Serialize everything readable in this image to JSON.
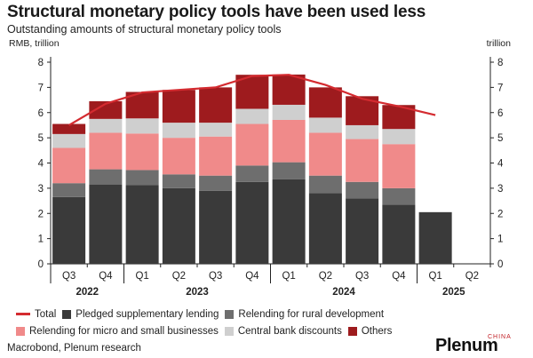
{
  "title": "Structural monetary policy tools have been used less",
  "subtitle": "Outstanding amounts of structural monetary policy tools",
  "source": "Macrobond, Plenum research",
  "logo": {
    "text": "Plenum",
    "superscript": "CHINA"
  },
  "colors": {
    "Total": "#d42b30",
    "Pledged supplementary lending": "#3a3a3a",
    "Relending for rural development": "#6e6e6e",
    "Relending for micro and small businesses": "#f08a8a",
    "Central bank discounts": "#cfcfcf",
    "Others": "#9e1b1e"
  },
  "chart_data": {
    "type": "bar",
    "stacked": true,
    "ylabel_left": "RMB, trillion",
    "ylabel_right": "trillion",
    "ylim": [
      0,
      8
    ],
    "yticks": [
      0,
      1,
      2,
      3,
      4,
      5,
      6,
      7,
      8
    ],
    "grid": false,
    "legend_position": "bottom",
    "categories": [
      "Q3",
      "Q4",
      "Q1",
      "Q2",
      "Q3",
      "Q4",
      "Q1",
      "Q2",
      "Q3",
      "Q4",
      "Q1",
      "Q2"
    ],
    "year_labels": [
      {
        "label": "2022",
        "categories": [
          0,
          1
        ]
      },
      {
        "label": "2023",
        "categories": [
          2,
          5
        ]
      },
      {
        "label": "2024",
        "categories": [
          6,
          9
        ]
      },
      {
        "label": "2025",
        "categories": [
          10,
          11
        ]
      }
    ],
    "series": [
      {
        "name": "Pledged supplementary lending",
        "values": [
          2.65,
          3.15,
          3.12,
          3.0,
          2.9,
          3.25,
          3.35,
          2.8,
          2.6,
          2.35,
          2.05,
          null
        ]
      },
      {
        "name": "Relending for rural development",
        "values": [
          0.55,
          0.6,
          0.6,
          0.55,
          0.6,
          0.65,
          0.68,
          0.7,
          0.65,
          0.65,
          null,
          null
        ]
      },
      {
        "name": "Relending for micro and small businesses",
        "values": [
          1.4,
          1.45,
          1.45,
          1.45,
          1.55,
          1.65,
          1.68,
          1.7,
          1.7,
          1.75,
          null,
          null
        ]
      },
      {
        "name": "Central bank discounts",
        "values": [
          0.55,
          0.55,
          0.6,
          0.6,
          0.55,
          0.6,
          0.6,
          0.6,
          0.55,
          0.6,
          null,
          null
        ]
      },
      {
        "name": "Others",
        "values": [
          0.4,
          0.7,
          1.05,
          1.3,
          1.4,
          1.35,
          1.2,
          1.2,
          1.15,
          0.95,
          null,
          null
        ]
      }
    ],
    "line": {
      "name": "Total",
      "values": [
        5.5,
        6.35,
        6.8,
        6.9,
        7.0,
        7.45,
        7.5,
        7.1,
        6.55,
        6.25,
        5.9,
        null
      ]
    }
  }
}
